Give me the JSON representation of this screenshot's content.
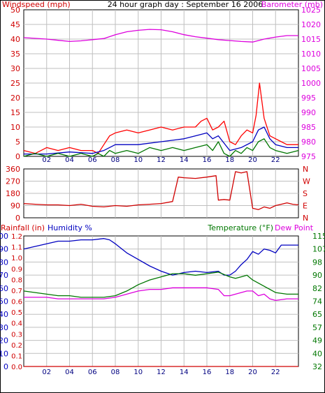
{
  "title": "24 hour graph day : September 16 2006",
  "colors": {
    "wind": "#d00000",
    "gust": "#ff0000",
    "avgwind": "#0000c0",
    "direction": "#d00000",
    "barometer": "#dd00dd",
    "humidity": "#0000c0",
    "temperature": "#007700",
    "dewpoint": "#dd00dd",
    "rainfall": "#d00000",
    "grid": "#bfbfbf"
  },
  "chart_data": [
    {
      "id": "wind",
      "type": "line",
      "left_axis_label": "Windspeed (mph)",
      "right_axis_label": "Barometer (mb)",
      "x_ticks": [
        "02",
        "04",
        "06",
        "08",
        "10",
        "12",
        "14",
        "16",
        "18",
        "20",
        "22"
      ],
      "y_left_ticks": [
        "0",
        "5",
        "10",
        "15",
        "20",
        "25",
        "30",
        "35",
        "40",
        "45",
        "50"
      ],
      "y_right_ticks": [
        "975",
        "980",
        "985",
        "990",
        "995",
        "1000",
        "1005",
        "1010",
        "1015",
        "1020",
        "1025"
      ],
      "ylim_left": [
        0,
        50
      ],
      "ylim_right": [
        975,
        1025
      ],
      "xlim": [
        0,
        24
      ],
      "series": [
        {
          "key": "barometer",
          "axis": "right",
          "x": [
            0,
            2,
            3,
            4,
            5,
            6,
            7,
            8,
            9,
            10,
            11,
            12,
            13,
            14,
            15,
            16,
            17,
            18,
            19,
            20,
            21,
            22,
            23,
            24
          ],
          "values": [
            1015.5,
            1015,
            1014.6,
            1014.2,
            1014.4,
            1014.8,
            1015.2,
            1016.5,
            1017.5,
            1018,
            1018.3,
            1018.2,
            1017.5,
            1016.5,
            1015.8,
            1015.3,
            1014.8,
            1014.5,
            1014.2,
            1014,
            1015,
            1015.7,
            1016.2,
            1016.2
          ]
        },
        {
          "key": "gust",
          "axis": "left",
          "x": [
            0,
            1,
            2,
            3,
            4,
            5,
            6,
            6.5,
            7,
            7.5,
            8,
            9,
            10,
            11,
            12,
            13,
            14,
            15,
            15.5,
            16,
            16.5,
            17,
            17.5,
            18,
            18.5,
            19,
            19.5,
            20,
            20.3,
            20.6,
            21,
            21.5,
            22,
            22.5,
            23,
            24
          ],
          "values": [
            2,
            1,
            3,
            2,
            3,
            2,
            2,
            1,
            4,
            7,
            8,
            9,
            8,
            9,
            10,
            9,
            10,
            10,
            12,
            13,
            9,
            10,
            12,
            5,
            4,
            7,
            9,
            8,
            14,
            25,
            13,
            7,
            6,
            5,
            4,
            4
          ]
        },
        {
          "key": "avgwind",
          "axis": "left",
          "x": [
            0,
            2,
            4,
            6,
            7,
            8,
            10,
            12,
            14,
            15,
            16,
            16.5,
            17,
            18,
            19,
            20,
            20.5,
            21,
            21.5,
            22,
            23,
            24
          ],
          "values": [
            0.8,
            0.8,
            1.5,
            1,
            2,
            4,
            4,
            5,
            6,
            7,
            8,
            6,
            7,
            2,
            3,
            5,
            9,
            10,
            6,
            4,
            3,
            3
          ]
        },
        {
          "key": "wind",
          "axis": "left",
          "x": [
            0,
            1,
            2,
            3,
            4,
            5,
            6,
            6.5,
            7,
            7.5,
            8,
            9,
            10,
            11,
            12,
            13,
            14,
            15,
            16,
            16.5,
            17,
            17.5,
            18,
            18.5,
            19,
            19.5,
            20,
            20.5,
            21,
            21.5,
            22,
            23,
            24
          ],
          "values": [
            0,
            1,
            0,
            1,
            0,
            1,
            0,
            1,
            0,
            2,
            1,
            2,
            1,
            3,
            2,
            3,
            2,
            3,
            4,
            2,
            5,
            1,
            0,
            2,
            1,
            3,
            2,
            5,
            6,
            3,
            2,
            1,
            2
          ]
        }
      ]
    },
    {
      "id": "direction",
      "type": "line",
      "y_left_ticks": [
        "0",
        "90",
        "180",
        "270",
        "360"
      ],
      "y_right_ticks": [
        "N",
        "E",
        "S",
        "W",
        "N"
      ],
      "ylim": [
        0,
        360
      ],
      "xlim": [
        0,
        24
      ],
      "series": [
        {
          "key": "direction",
          "axis": "left",
          "x": [
            0,
            1,
            2,
            3,
            4,
            5,
            6,
            7,
            8,
            9,
            10,
            11,
            12,
            13,
            13.5,
            14,
            15,
            16,
            16.8,
            17,
            17.5,
            18,
            18.5,
            19,
            19.5,
            20,
            20.5,
            21,
            21.5,
            22,
            22.5,
            23,
            23.5,
            24
          ],
          "values": [
            105,
            100,
            95,
            95,
            90,
            100,
            85,
            80,
            90,
            85,
            95,
            100,
            105,
            120,
            300,
            295,
            290,
            300,
            310,
            130,
            135,
            130,
            340,
            330,
            340,
            70,
            60,
            80,
            70,
            90,
            100,
            110,
            100,
            95
          ]
        }
      ]
    },
    {
      "id": "temperature",
      "type": "line",
      "left_axis_label": "Rainfall (in)",
      "left_axis_label2": "Humidity %",
      "right_axis_label": "Temperature (°F)",
      "right_axis_label2": "Dew Point",
      "y_left_ticks": [
        "0",
        "10",
        "20",
        "30",
        "40",
        "50",
        "60",
        "70",
        "80",
        "90",
        "100"
      ],
      "y_rain_ticks": [
        "0.0",
        "0.1",
        "0.2",
        "0.3",
        "0.4",
        "0.5",
        "0.6",
        "0.7",
        "0.8",
        "0.9",
        "1.0",
        "1.1",
        "1.2"
      ],
      "y_right_ticks": [
        "32",
        "40",
        "49",
        "57",
        "65",
        "74",
        "82",
        "90",
        "98",
        "107",
        "115"
      ],
      "ylim_left": [
        0,
        100
      ],
      "ylim_right": [
        32,
        115
      ],
      "xlim": [
        0,
        24
      ],
      "series": [
        {
          "key": "humidity",
          "axis": "left",
          "x": [
            0,
            1,
            2,
            3,
            4,
            5,
            6,
            7,
            7.5,
            8,
            9,
            10,
            11,
            12,
            13,
            14,
            15,
            16,
            17,
            17.5,
            18,
            18.5,
            19,
            19.5,
            20,
            20.5,
            21,
            21.5,
            22,
            22.5,
            23,
            24
          ],
          "values": [
            90,
            92,
            94,
            96,
            96,
            97,
            97,
            98,
            97,
            94,
            87,
            82,
            77,
            73,
            70,
            72,
            73,
            72,
            73,
            70,
            70,
            73,
            78,
            82,
            88,
            86,
            90,
            89,
            87,
            93,
            93,
            93
          ]
        },
        {
          "key": "temperature",
          "axis": "right",
          "x": [
            0,
            1,
            2,
            3,
            4,
            5,
            6,
            7,
            8,
            9,
            10,
            11,
            12,
            13,
            14,
            15,
            16,
            17,
            18,
            18.5,
            19,
            19.5,
            20,
            21,
            22,
            23,
            24
          ],
          "values": [
            80,
            79,
            78,
            77,
            77,
            76,
            76,
            76,
            77,
            80,
            84,
            87,
            89,
            91,
            91,
            90,
            91,
            92,
            89,
            88,
            89,
            90,
            87,
            83,
            79,
            78,
            78
          ]
        },
        {
          "key": "dewpoint",
          "axis": "right",
          "x": [
            0,
            1,
            2,
            3,
            4,
            5,
            6,
            7,
            8,
            9,
            10,
            11,
            12,
            13,
            14,
            15,
            16,
            17,
            17.5,
            18,
            18.5,
            19,
            19.5,
            20,
            20.5,
            21,
            21.5,
            22,
            23,
            24
          ],
          "values": [
            76,
            76,
            76,
            75,
            75,
            75,
            75,
            75,
            76,
            78,
            80,
            81,
            81,
            82,
            82,
            82,
            82,
            81,
            77,
            77,
            78,
            79,
            80,
            80,
            77,
            78,
            75,
            74,
            75,
            75
          ]
        },
        {
          "key": "rainfall",
          "axis": "left",
          "x": [
            0,
            24
          ],
          "values": [
            0,
            0
          ]
        }
      ]
    }
  ]
}
